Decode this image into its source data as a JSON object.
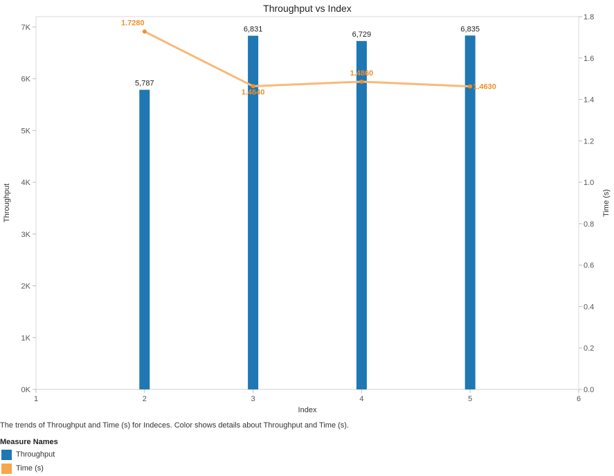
{
  "chart_data": {
    "type": "bar+line",
    "title": "Throughput vs Index",
    "xlabel": "Index",
    "ylabel_left": "Throughput",
    "ylabel_right": "Time (s)",
    "x_ticks": [
      "1",
      "2",
      "3",
      "4",
      "5",
      "6"
    ],
    "xlim": [
      1,
      6
    ],
    "ylim_left": [
      0,
      7200
    ],
    "ylim_right": [
      0,
      1.8
    ],
    "y_ticks_left": [
      {
        "value": 0,
        "label": "0K"
      },
      {
        "value": 1000,
        "label": "1K"
      },
      {
        "value": 2000,
        "label": "2K"
      },
      {
        "value": 3000,
        "label": "3K"
      },
      {
        "value": 4000,
        "label": "4K"
      },
      {
        "value": 5000,
        "label": "5K"
      },
      {
        "value": 6000,
        "label": "6K"
      },
      {
        "value": 7000,
        "label": "7K"
      }
    ],
    "y_ticks_right": [
      {
        "value": 0,
        "label": "0.0"
      },
      {
        "value": 0.2,
        "label": "0.2"
      },
      {
        "value": 0.4,
        "label": "0.4"
      },
      {
        "value": 0.6,
        "label": "0.6"
      },
      {
        "value": 0.8,
        "label": "0.8"
      },
      {
        "value": 1.0,
        "label": "1.0"
      },
      {
        "value": 1.2,
        "label": "1.2"
      },
      {
        "value": 1.4,
        "label": "1.4"
      },
      {
        "value": 1.6,
        "label": "1.6"
      },
      {
        "value": 1.8,
        "label": "1.8"
      }
    ],
    "series": [
      {
        "name": "Throughput",
        "type": "bar",
        "axis": "left",
        "color": "#1f77b4",
        "x": [
          2,
          3,
          4,
          5
        ],
        "values": [
          5787,
          6831,
          6729,
          6835
        ],
        "labels": [
          "5,787",
          "6,831",
          "6,729",
          "6,835"
        ]
      },
      {
        "name": "Time (s)",
        "type": "line",
        "axis": "right",
        "color": "#f9b978",
        "label_color": "#f28e2b",
        "x": [
          2,
          3,
          4,
          5
        ],
        "values": [
          1.728,
          1.464,
          1.486,
          1.463
        ],
        "labels": [
          "1.7280",
          "1.4640",
          "1.4860",
          "1.4630"
        ]
      }
    ],
    "grid": false,
    "legend_position": "bottom-left"
  },
  "caption": "The trends of Throughput and Time (s) for Indeces.  Color shows details about Throughput and Time (s).",
  "legend": {
    "title": "Measure Names",
    "items": [
      {
        "label": "Throughput",
        "color": "#1f77b4"
      },
      {
        "label": "Time (s)",
        "color": "#f9a54a"
      }
    ]
  }
}
